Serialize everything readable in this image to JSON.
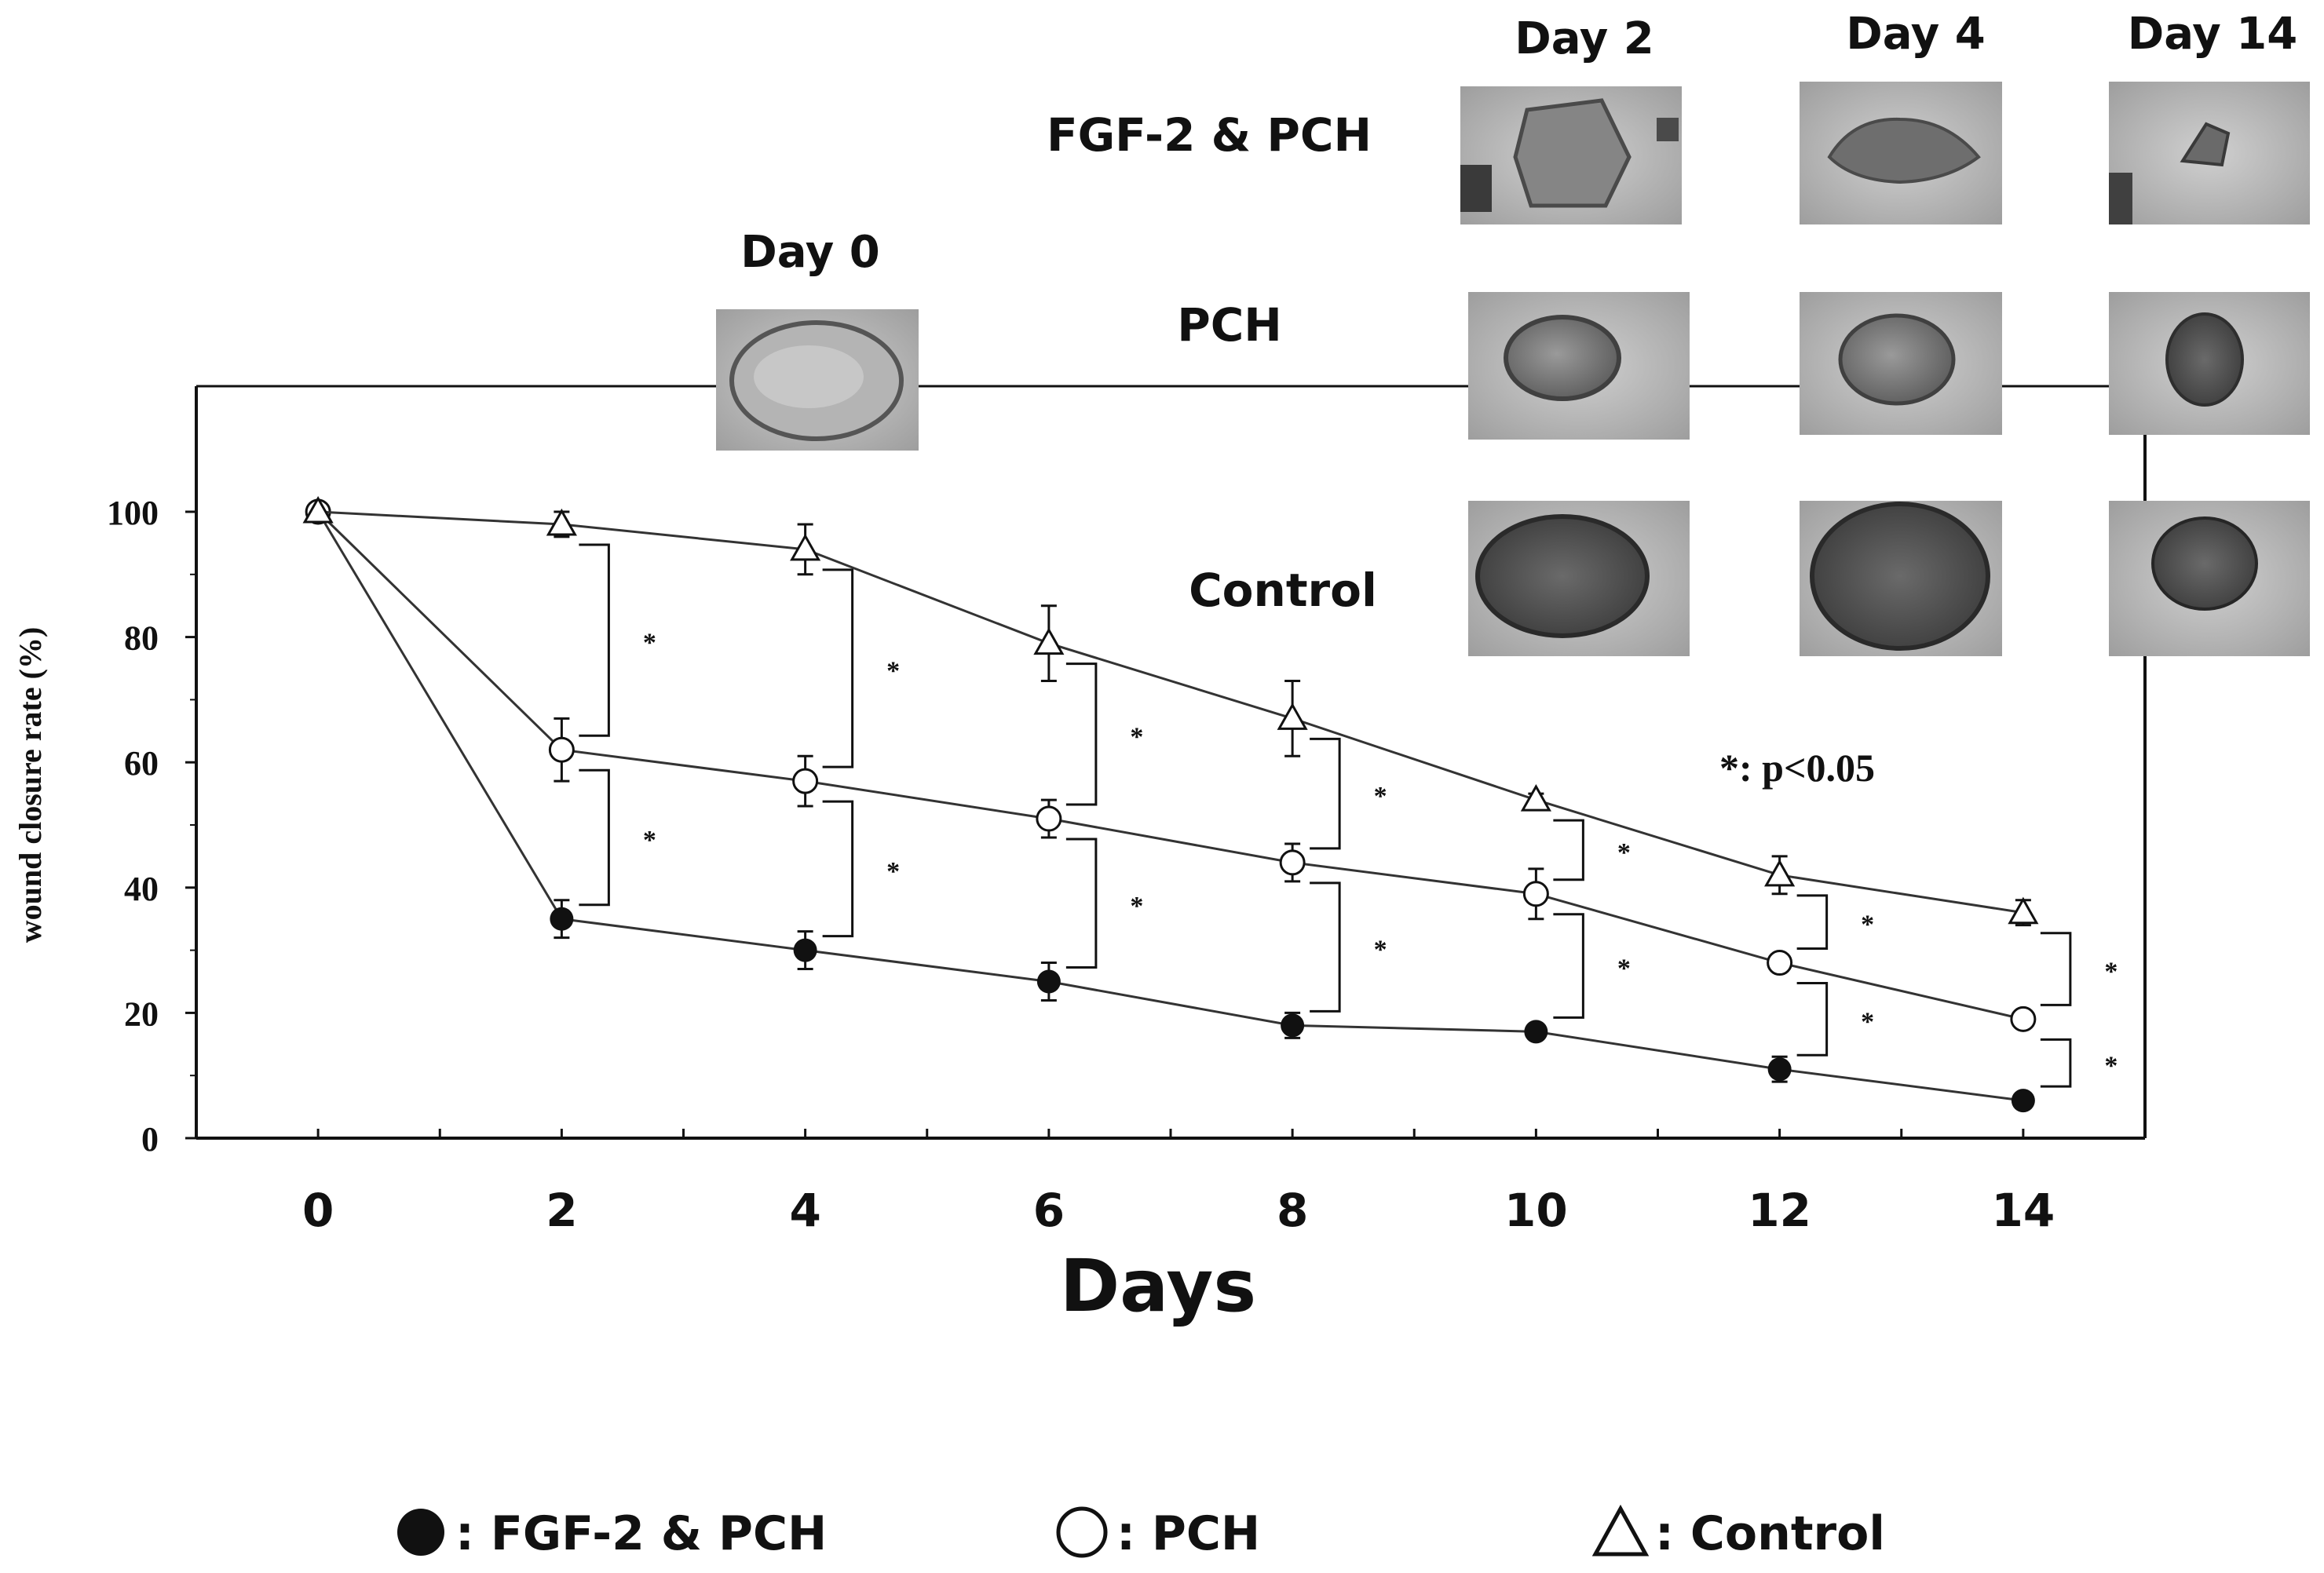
{
  "chart_data": {
    "type": "line",
    "xlabel": "Days",
    "ylabel": "wound closure rate (%)",
    "x": [
      0,
      2,
      4,
      6,
      8,
      10,
      12,
      14
    ],
    "xlim": [
      -1,
      15
    ],
    "ylim": [
      0,
      100
    ],
    "xticks": [
      "0",
      "2",
      "4",
      "6",
      "8",
      "10",
      "12",
      "14"
    ],
    "yticks": [
      "0",
      "20",
      "40",
      "60",
      "80",
      "100"
    ],
    "grid": false,
    "legend_position": "bottom",
    "series": [
      {
        "name": "FGF-2 & PCH",
        "legend_label": ": FGF-2 & PCH",
        "marker": "filled-circle",
        "values": [
          100,
          35,
          30,
          25,
          18,
          17,
          11,
          6
        ],
        "errors": [
          0,
          3,
          3,
          3,
          2,
          1,
          2,
          1
        ]
      },
      {
        "name": "PCH",
        "legend_label": ": PCH",
        "marker": "open-circle",
        "values": [
          100,
          62,
          57,
          51,
          44,
          39,
          28,
          19
        ],
        "errors": [
          0,
          5,
          4,
          3,
          3,
          4,
          1,
          1
        ]
      },
      {
        "name": "Control",
        "legend_label": ": Control",
        "marker": "open-triangle",
        "values": [
          100,
          98,
          94,
          79,
          67,
          54,
          42,
          36
        ],
        "errors": [
          0,
          2,
          4,
          6,
          6,
          1,
          3,
          2
        ]
      }
    ],
    "significance_note": "*: p<0.05",
    "significance_brackets": [
      {
        "x": 2,
        "from": 98,
        "to": 62
      },
      {
        "x": 2,
        "from": 62,
        "to": 35
      },
      {
        "x": 4,
        "from": 94,
        "to": 57
      },
      {
        "x": 4,
        "from": 57,
        "to": 30
      },
      {
        "x": 6,
        "from": 79,
        "to": 51
      },
      {
        "x": 6,
        "from": 51,
        "to": 25
      },
      {
        "x": 8,
        "from": 67,
        "to": 44
      },
      {
        "x": 8,
        "from": 44,
        "to": 18
      },
      {
        "x": 10,
        "from": 54,
        "to": 39
      },
      {
        "x": 10,
        "from": 39,
        "to": 17
      },
      {
        "x": 12,
        "from": 42,
        "to": 28
      },
      {
        "x": 12,
        "from": 28,
        "to": 11
      },
      {
        "x": 14,
        "from": 36,
        "to": 19
      },
      {
        "x": 14,
        "from": 19,
        "to": 6
      }
    ],
    "significance_mark": "*"
  },
  "photo_panel": {
    "day_labels": {
      "day0": "Day 0",
      "day2": "Day 2",
      "day4": "Day 4",
      "day14": "Day 14"
    },
    "row_labels": {
      "fgf": "FGF-2 & PCH",
      "pch": "PCH",
      "control": "Control"
    }
  },
  "colors": {
    "ink": "#111111",
    "photo_background": "#c4c4c4",
    "wound": "#555555"
  }
}
